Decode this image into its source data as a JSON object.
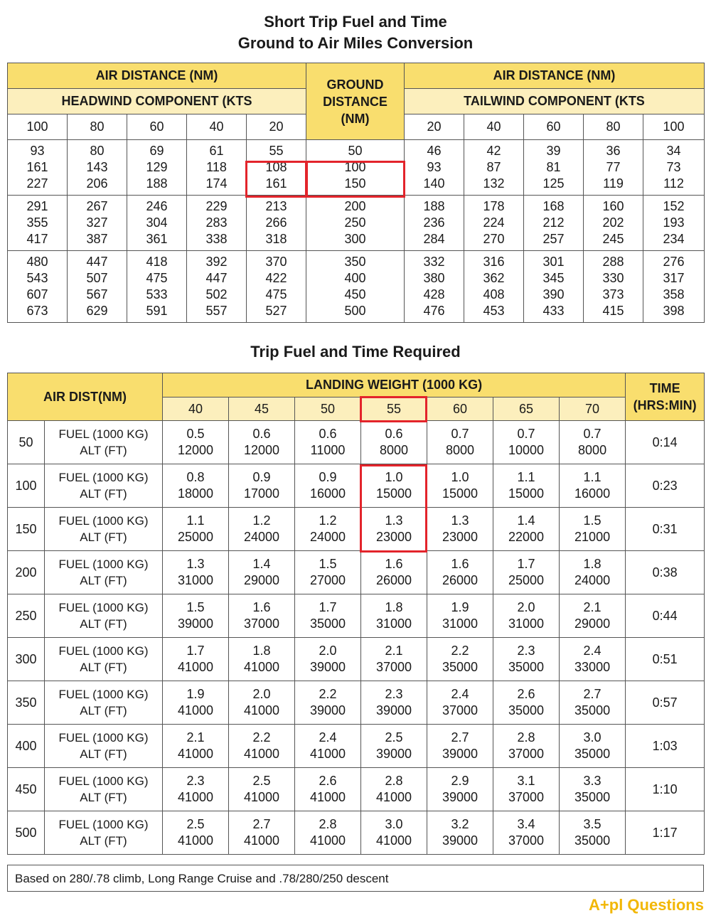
{
  "titles": {
    "conversion_line1": "Short Trip Fuel and Time",
    "conversion_line2": "Ground to Air Miles Conversion",
    "trip": "Trip Fuel and Time Required"
  },
  "conversion_table": {
    "air_distance_header": "AIR DISTANCE (NM)",
    "headwind_header": "HEADWIND COMPONENT (KTS",
    "tailwind_header": "TAILWIND COMPONENT (KTS",
    "ground_distance_header": "GROUND DISTANCE (NM)",
    "headwind_cols": [
      "100",
      "80",
      "60",
      "40",
      "20"
    ],
    "tailwind_cols": [
      "20",
      "40",
      "60",
      "80",
      "100"
    ],
    "groups": [
      {
        "head": [
          [
            "93",
            "161",
            "227"
          ],
          [
            "80",
            "143",
            "206"
          ],
          [
            "69",
            "129",
            "188"
          ],
          [
            "61",
            "118",
            "174"
          ],
          [
            "55",
            "108",
            "161"
          ]
        ],
        "ground": [
          "50",
          "100",
          "150"
        ],
        "tail": [
          [
            "46",
            "93",
            "140"
          ],
          [
            "42",
            "87",
            "132"
          ],
          [
            "39",
            "81",
            "125"
          ],
          [
            "36",
            "77",
            "119"
          ],
          [
            "34",
            "73",
            "112"
          ]
        ]
      },
      {
        "head": [
          [
            "291",
            "355",
            "417"
          ],
          [
            "267",
            "327",
            "387"
          ],
          [
            "246",
            "304",
            "361"
          ],
          [
            "229",
            "283",
            "338"
          ],
          [
            "213",
            "266",
            "318"
          ]
        ],
        "ground": [
          "200",
          "250",
          "300"
        ],
        "tail": [
          [
            "188",
            "236",
            "284"
          ],
          [
            "178",
            "224",
            "270"
          ],
          [
            "168",
            "212",
            "257"
          ],
          [
            "160",
            "202",
            "245"
          ],
          [
            "152",
            "193",
            "234"
          ]
        ]
      },
      {
        "head": [
          [
            "480",
            "543",
            "607",
            "673"
          ],
          [
            "447",
            "507",
            "567",
            "629"
          ],
          [
            "418",
            "475",
            "533",
            "591"
          ],
          [
            "392",
            "447",
            "502",
            "557"
          ],
          [
            "370",
            "422",
            "475",
            "527"
          ]
        ],
        "ground": [
          "350",
          "400",
          "450",
          "500"
        ],
        "tail": [
          [
            "332",
            "380",
            "428",
            "476"
          ],
          [
            "316",
            "362",
            "408",
            "453"
          ],
          [
            "301",
            "345",
            "390",
            "433"
          ],
          [
            "288",
            "330",
            "373",
            "415"
          ],
          [
            "276",
            "317",
            "358",
            "398"
          ]
        ]
      }
    ]
  },
  "trip_table": {
    "air_dist_header": "AIR DIST(NM)",
    "landing_weight_header": "LANDING WEIGHT (1000 KG)",
    "time_header": "TIME (HRS:MIN)",
    "weights": [
      "40",
      "45",
      "50",
      "55",
      "60",
      "65",
      "70"
    ],
    "fuel_label": "FUEL (1000 KG)",
    "alt_label": "ALT (FT)",
    "rows": [
      {
        "dist": "50",
        "fuel": [
          "0.5",
          "0.6",
          "0.6",
          "0.6",
          "0.7",
          "0.7",
          "0.7"
        ],
        "alt": [
          "12000",
          "12000",
          "11000",
          "8000",
          "8000",
          "10000",
          "8000"
        ],
        "time": "0:14"
      },
      {
        "dist": "100",
        "fuel": [
          "0.8",
          "0.9",
          "0.9",
          "1.0",
          "1.0",
          "1.1",
          "1.1"
        ],
        "alt": [
          "18000",
          "17000",
          "16000",
          "15000",
          "15000",
          "15000",
          "16000"
        ],
        "time": "0:23"
      },
      {
        "dist": "150",
        "fuel": [
          "1.1",
          "1.2",
          "1.2",
          "1.3",
          "1.3",
          "1.4",
          "1.5"
        ],
        "alt": [
          "25000",
          "24000",
          "24000",
          "23000",
          "23000",
          "22000",
          "21000"
        ],
        "time": "0:31"
      },
      {
        "dist": "200",
        "fuel": [
          "1.3",
          "1.4",
          "1.5",
          "1.6",
          "1.6",
          "1.7",
          "1.8"
        ],
        "alt": [
          "31000",
          "29000",
          "27000",
          "26000",
          "26000",
          "25000",
          "24000"
        ],
        "time": "0:38"
      },
      {
        "dist": "250",
        "fuel": [
          "1.5",
          "1.6",
          "1.7",
          "1.8",
          "1.9",
          "2.0",
          "2.1"
        ],
        "alt": [
          "39000",
          "37000",
          "35000",
          "31000",
          "31000",
          "31000",
          "29000"
        ],
        "time": "0:44"
      },
      {
        "dist": "300",
        "fuel": [
          "1.7",
          "1.8",
          "2.0",
          "2.1",
          "2.2",
          "2.3",
          "2.4"
        ],
        "alt": [
          "41000",
          "41000",
          "39000",
          "37000",
          "35000",
          "35000",
          "33000"
        ],
        "time": "0:51"
      },
      {
        "dist": "350",
        "fuel": [
          "1.9",
          "2.0",
          "2.2",
          "2.3",
          "2.4",
          "2.6",
          "2.7"
        ],
        "alt": [
          "41000",
          "41000",
          "39000",
          "39000",
          "37000",
          "35000",
          "35000"
        ],
        "time": "0:57"
      },
      {
        "dist": "400",
        "fuel": [
          "2.1",
          "2.2",
          "2.4",
          "2.5",
          "2.7",
          "2.8",
          "3.0"
        ],
        "alt": [
          "41000",
          "41000",
          "41000",
          "39000",
          "39000",
          "37000",
          "35000"
        ],
        "time": "1:03"
      },
      {
        "dist": "450",
        "fuel": [
          "2.3",
          "2.5",
          "2.6",
          "2.8",
          "2.9",
          "3.1",
          "3.3"
        ],
        "alt": [
          "41000",
          "41000",
          "41000",
          "41000",
          "39000",
          "37000",
          "35000"
        ],
        "time": "1:10"
      },
      {
        "dist": "500",
        "fuel": [
          "2.5",
          "2.7",
          "2.8",
          "3.0",
          "3.2",
          "3.4",
          "3.5"
        ],
        "alt": [
          "41000",
          "41000",
          "41000",
          "41000",
          "39000",
          "37000",
          "35000"
        ],
        "time": "1:17"
      }
    ]
  },
  "footnote": "Based on 280/.78 climb, Long Range Cruise and .78/280/250 descent",
  "logo": {
    "part1": "A",
    "plus": "+",
    "part2": "pl Questions"
  },
  "colors": {
    "header": "#f9de6e",
    "subheader": "#fcefbd",
    "highlight": "#e3242b",
    "logo": "#f2b705"
  }
}
